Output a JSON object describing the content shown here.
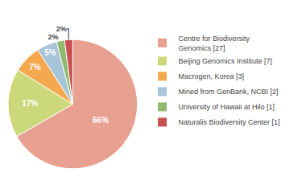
{
  "chart_data": {
    "type": "pie",
    "labels": [
      "Centre for Biodiversity\nGenomics [27]",
      "Beijing Genomics Institute [7]",
      "Macrogen, Korea [3]",
      "Mined from GenBank, NCBI [2]",
      "University of Hawaii at Hilo [1]",
      "Naturalis Biodiversity Center [1]"
    ],
    "values": [
      66,
      17,
      7,
      5,
      2,
      2
    ],
    "value_labels": [
      "66%",
      "17%",
      "7%",
      "5%",
      "2%",
      "2%"
    ],
    "colors": [
      "#e8a090",
      "#ccd97a",
      "#f5a94e",
      "#a8c4d8",
      "#8fba6e",
      "#c95050"
    ],
    "data_labels": true,
    "legend": "right"
  }
}
